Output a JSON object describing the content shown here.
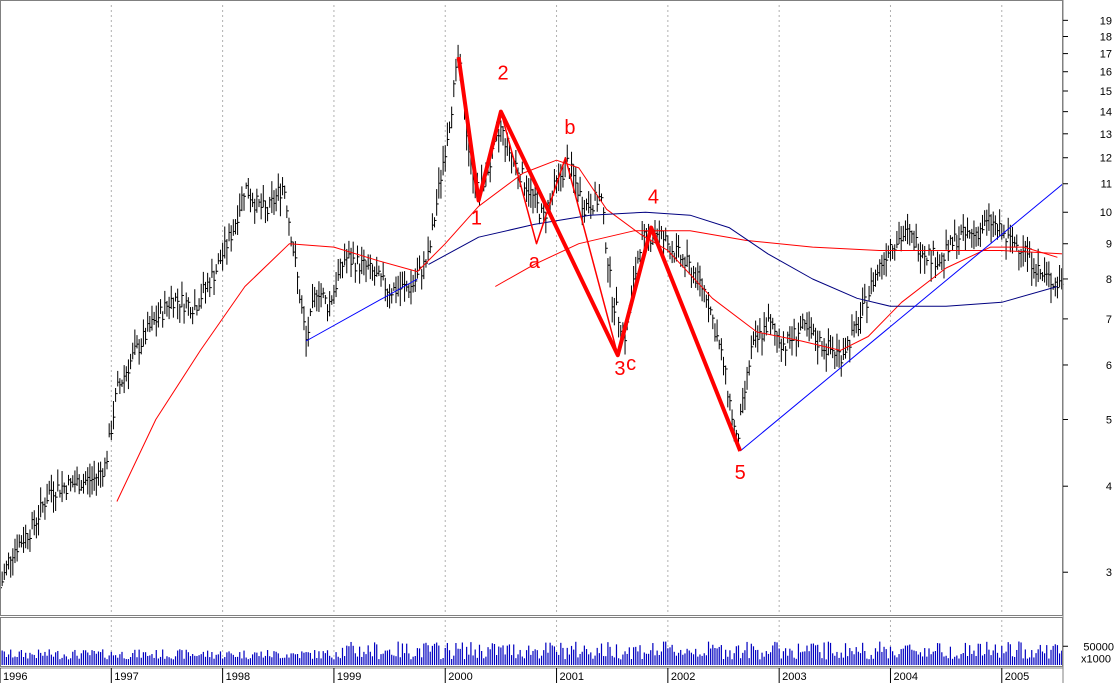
{
  "chart_data": {
    "type": "line",
    "scale": "log",
    "ylim": [
      2.6,
      20
    ],
    "y_ticks": [
      3,
      4,
      5,
      6,
      7,
      8,
      9,
      10,
      11,
      12,
      13,
      14,
      15,
      16,
      17,
      18,
      19
    ],
    "x_ticks": [
      "1996",
      "1997",
      "1998",
      "1999",
      "2000",
      "2001",
      "2002",
      "2003",
      "2004",
      "2005"
    ],
    "x_range": [
      1996.0,
      2005.55
    ],
    "grid": "vertical dotted at year boundaries",
    "colors": {
      "price": "#000000",
      "wave": "#ff0000",
      "ma_short": "#ff0000",
      "ma_long": "#000080",
      "trendline": "#0000ff",
      "volume": "#0000c0"
    },
    "price_path": [
      [
        1996.0,
        2.85
      ],
      [
        1996.1,
        3.2
      ],
      [
        1996.3,
        3.5
      ],
      [
        1996.45,
        3.95
      ],
      [
        1996.7,
        4.05
      ],
      [
        1996.85,
        4.1
      ],
      [
        1996.95,
        4.3
      ],
      [
        1997.05,
        5.5
      ],
      [
        1997.2,
        6.2
      ],
      [
        1997.35,
        6.8
      ],
      [
        1997.55,
        7.5
      ],
      [
        1997.75,
        7.3
      ],
      [
        1997.95,
        8.3
      ],
      [
        1998.1,
        9.5
      ],
      [
        1998.2,
        10.9
      ],
      [
        1998.3,
        10.3
      ],
      [
        1998.4,
        10.0
      ],
      [
        1998.55,
        11.0
      ],
      [
        1998.65,
        8.5
      ],
      [
        1998.75,
        6.5
      ],
      [
        1998.85,
        7.8
      ],
      [
        1998.95,
        7.3
      ],
      [
        1999.1,
        8.6
      ],
      [
        1999.3,
        8.3
      ],
      [
        1999.5,
        7.7
      ],
      [
        1999.7,
        7.8
      ],
      [
        1999.85,
        8.6
      ],
      [
        1999.95,
        11.0
      ],
      [
        2000.05,
        14.0
      ],
      [
        2000.12,
        16.8
      ],
      [
        2000.22,
        12.0
      ],
      [
        2000.3,
        10.6
      ],
      [
        2000.42,
        12.0
      ],
      [
        2000.5,
        13.2
      ],
      [
        2000.6,
        12.0
      ],
      [
        2000.75,
        10.8
      ],
      [
        2000.88,
        9.8
      ],
      [
        2001.0,
        11.0
      ],
      [
        2001.1,
        11.8
      ],
      [
        2001.25,
        10.2
      ],
      [
        2001.4,
        10.5
      ],
      [
        2001.5,
        7.5
      ],
      [
        2001.62,
        6.6
      ],
      [
        2001.75,
        9.0
      ],
      [
        2001.9,
        9.4
      ],
      [
        2002.05,
        8.8
      ],
      [
        2002.2,
        8.3
      ],
      [
        2002.35,
        7.6
      ],
      [
        2002.5,
        6.0
      ],
      [
        2002.62,
        4.6
      ],
      [
        2002.75,
        6.3
      ],
      [
        2002.9,
        6.9
      ],
      [
        2003.05,
        6.4
      ],
      [
        2003.2,
        6.8
      ],
      [
        2003.4,
        6.4
      ],
      [
        2003.55,
        6.2
      ],
      [
        2003.7,
        6.8
      ],
      [
        2003.85,
        8.0
      ],
      [
        2004.0,
        9.0
      ],
      [
        2004.15,
        9.3
      ],
      [
        2004.3,
        8.8
      ],
      [
        2004.45,
        8.5
      ],
      [
        2004.6,
        9.2
      ],
      [
        2004.75,
        9.3
      ],
      [
        2004.9,
        9.7
      ],
      [
        2005.05,
        9.1
      ],
      [
        2005.2,
        8.9
      ],
      [
        2005.35,
        8.1
      ],
      [
        2005.5,
        7.9
      ]
    ],
    "elliott_wave": [
      [
        2000.12,
        16.8
      ],
      [
        2000.3,
        10.4
      ],
      [
        2000.5,
        14.0
      ],
      [
        2001.55,
        6.2
      ],
      [
        2001.85,
        9.5
      ],
      [
        2002.65,
        4.5
      ]
    ],
    "abc_correction": [
      [
        2000.5,
        14.0
      ],
      [
        2000.82,
        9.0
      ],
      [
        2001.08,
        12.0
      ],
      [
        2001.55,
        6.2
      ]
    ],
    "ma_short": [
      [
        1997.05,
        3.8
      ],
      [
        1997.4,
        5.0
      ],
      [
        1997.8,
        6.3
      ],
      [
        1998.2,
        7.8
      ],
      [
        1998.6,
        9.0
      ],
      [
        1999.0,
        8.9
      ],
      [
        1999.4,
        8.5
      ],
      [
        1999.75,
        8.2
      ],
      [
        2000.0,
        9.0
      ],
      [
        2000.3,
        10.2
      ],
      [
        2000.7,
        11.4
      ],
      [
        2001.0,
        11.9
      ],
      [
        2001.2,
        11.6
      ],
      [
        2001.45,
        10.1
      ],
      [
        2001.75,
        9.3
      ],
      [
        2002.0,
        8.8
      ],
      [
        2002.4,
        7.5
      ],
      [
        2002.8,
        6.7
      ],
      [
        2003.2,
        6.5
      ],
      [
        2003.55,
        6.3
      ],
      [
        2003.8,
        6.6
      ],
      [
        2004.1,
        7.4
      ],
      [
        2004.5,
        8.3
      ],
      [
        2004.9,
        8.9
      ],
      [
        2005.2,
        8.9
      ],
      [
        2005.5,
        8.6
      ]
    ],
    "ma_long": [
      [
        1999.85,
        8.4
      ],
      [
        2000.3,
        9.2
      ],
      [
        2000.8,
        9.6
      ],
      [
        2001.3,
        9.9
      ],
      [
        2001.8,
        10.0
      ],
      [
        2002.2,
        9.9
      ],
      [
        2002.55,
        9.5
      ],
      [
        2002.9,
        8.7
      ],
      [
        2003.3,
        8.0
      ],
      [
        2003.7,
        7.5
      ],
      [
        2004.0,
        7.3
      ],
      [
        2004.5,
        7.3
      ],
      [
        2005.0,
        7.4
      ],
      [
        2005.5,
        7.8
      ]
    ],
    "ma_mid": [
      [
        2000.45,
        7.8
      ],
      [
        2000.8,
        8.4
      ],
      [
        2001.2,
        9.0
      ],
      [
        2001.7,
        9.4
      ],
      [
        2002.2,
        9.4
      ],
      [
        2002.7,
        9.1
      ],
      [
        2003.3,
        8.9
      ],
      [
        2003.9,
        8.8
      ],
      [
        2004.5,
        8.8
      ],
      [
        2005.0,
        8.8
      ],
      [
        2005.55,
        8.7
      ]
    ],
    "trendlines": [
      [
        [
          1998.75,
          6.5
        ],
        [
          1999.75,
          8.0
        ]
      ],
      [
        [
          2002.65,
          4.5
        ],
        [
          2005.55,
          11.0
        ]
      ]
    ],
    "wave_labels": [
      {
        "text": "1",
        "x": 2000.28,
        "y": 9.6
      },
      {
        "text": "2",
        "x": 2000.52,
        "y": 15.6
      },
      {
        "text": "3",
        "x": 2001.57,
        "y": 5.8
      },
      {
        "text": "c",
        "x": 2001.67,
        "y": 5.9
      },
      {
        "text": "4",
        "x": 2001.87,
        "y": 10.3
      },
      {
        "text": "5",
        "x": 2002.65,
        "y": 4.1
      },
      {
        "text": "a",
        "x": 2000.8,
        "y": 8.3
      },
      {
        "text": "b",
        "x": 2001.12,
        "y": 13.0
      }
    ],
    "volume": {
      "ticks": [
        "50000"
      ],
      "unit_label": "x1000",
      "max": 120000
    }
  }
}
